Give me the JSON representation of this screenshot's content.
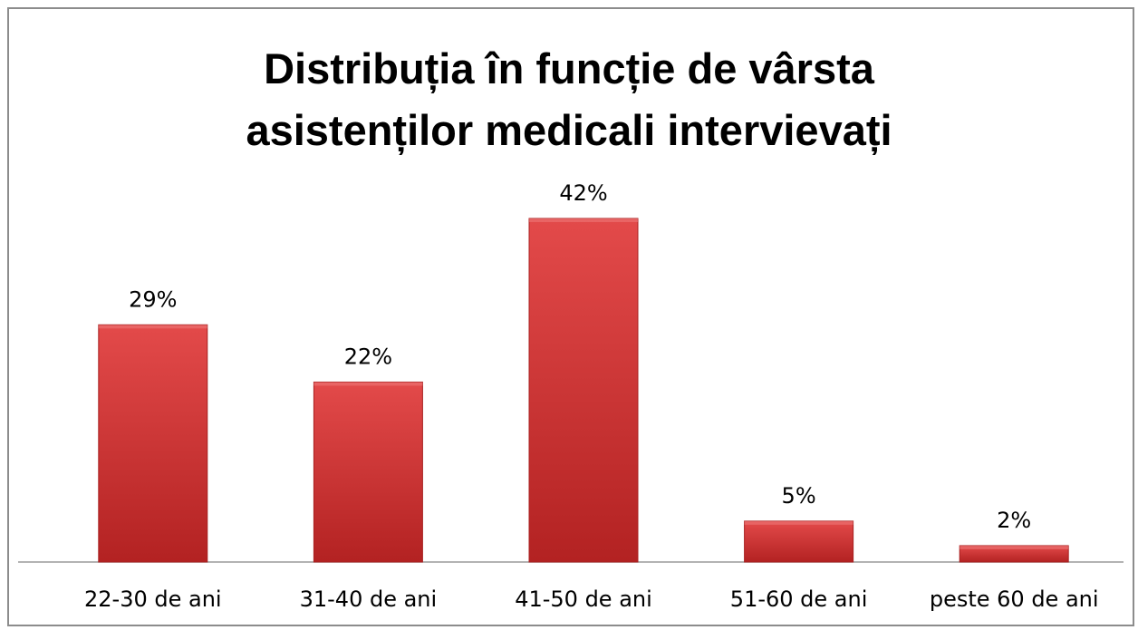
{
  "chart_data": {
    "type": "bar",
    "title": "Distribuția în funcție de vârsta asistenților medicali intervievați",
    "categories": [
      "22-30 de ani",
      "31-40 de ani",
      "41-50 de ani",
      "51-60 de ani",
      "peste 60 de ani"
    ],
    "values": [
      29,
      22,
      42,
      5,
      2
    ],
    "value_labels": [
      "29%",
      "22%",
      "42%",
      "5%",
      "2%"
    ],
    "color": "#d63a3a"
  }
}
